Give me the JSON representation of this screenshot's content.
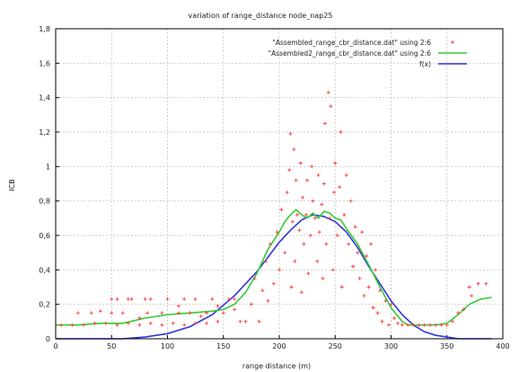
{
  "chart_data": {
    "type": "scatter",
    "title": "variation of range_distance node_nap25",
    "xlabel": "range distance (m)",
    "ylabel": "ICB",
    "xlim": [
      0,
      400
    ],
    "ylim": [
      0,
      1.8
    ],
    "x_ticks": [
      0,
      50,
      100,
      150,
      200,
      250,
      300,
      350,
      400
    ],
    "x_tick_labels": [
      "0",
      "50",
      "100",
      "150",
      "200",
      "250",
      "300",
      "350",
      "400"
    ],
    "y_ticks": [
      0,
      0.2,
      0.4,
      0.6,
      0.8,
      1,
      1.2,
      1.4,
      1.6,
      1.8
    ],
    "y_tick_labels": [
      "0",
      "0,2",
      "0,4",
      "0,6",
      "0,8",
      "1",
      "1,2",
      "1,4",
      "1,6",
      "1,8"
    ],
    "grid": true,
    "legend_position": "top-right",
    "colors": {
      "points": "#ff3b3b",
      "average": "#33cc33",
      "fit": "#3333dd",
      "grid": "#bbbbbb",
      "frame": "#000000"
    },
    "series": [
      {
        "name": "\"Assembled_range_cbr_distance.dat\" using 2:6",
        "kind": "points",
        "points": [
          [
            5,
            0.08
          ],
          [
            15,
            0.08
          ],
          [
            25,
            0.08
          ],
          [
            35,
            0.09
          ],
          [
            45,
            0.09
          ],
          [
            55,
            0.08
          ],
          [
            65,
            0.09
          ],
          [
            75,
            0.08
          ],
          [
            85,
            0.09
          ],
          [
            95,
            0.08
          ],
          [
            105,
            0.09
          ],
          [
            115,
            0.08
          ],
          [
            125,
            0.09
          ],
          [
            135,
            0.09
          ],
          [
            145,
            0.1
          ],
          [
            20,
            0.15
          ],
          [
            32,
            0.15
          ],
          [
            50,
            0.15
          ],
          [
            60,
            0.15
          ],
          [
            82,
            0.15
          ],
          [
            95,
            0.15
          ],
          [
            110,
            0.15
          ],
          [
            120,
            0.15
          ],
          [
            135,
            0.15
          ],
          [
            150,
            0.15
          ],
          [
            160,
            0.17
          ],
          [
            50,
            0.23
          ],
          [
            55,
            0.23
          ],
          [
            65,
            0.23
          ],
          [
            68,
            0.23
          ],
          [
            80,
            0.23
          ],
          [
            85,
            0.23
          ],
          [
            100,
            0.23
          ],
          [
            115,
            0.23
          ],
          [
            125,
            0.23
          ],
          [
            140,
            0.23
          ],
          [
            155,
            0.23
          ],
          [
            160,
            0.23
          ],
          [
            40,
            0.16
          ],
          [
            75,
            0.12
          ],
          [
            110,
            0.19
          ],
          [
            130,
            0.13
          ],
          [
            145,
            0.19
          ],
          [
            165,
            0.1
          ],
          [
            170,
            0.1
          ],
          [
            175,
            0.2
          ],
          [
            178,
            0.35
          ],
          [
            182,
            0.1
          ],
          [
            185,
            0.28
          ],
          [
            188,
            0.45
          ],
          [
            190,
            0.22
          ],
          [
            192,
            0.55
          ],
          [
            195,
            0.32
          ],
          [
            198,
            0.62
          ],
          [
            200,
            0.4
          ],
          [
            202,
            0.75
          ],
          [
            205,
            0.5
          ],
          [
            207,
            0.85
          ],
          [
            209,
            0.98
          ],
          [
            210,
            1.19
          ],
          [
            211,
            0.3
          ],
          [
            212,
            0.68
          ],
          [
            213,
            1.1
          ],
          [
            214,
            0.45
          ],
          [
            215,
            0.92
          ],
          [
            216,
            0.72
          ],
          [
            218,
            0.63
          ],
          [
            219,
            1.02
          ],
          [
            220,
            0.27
          ],
          [
            221,
            0.82
          ],
          [
            222,
            0.55
          ],
          [
            224,
            0.72
          ],
          [
            225,
            0.92
          ],
          [
            226,
            0.38
          ],
          [
            228,
            0.6
          ],
          [
            229,
            1.0
          ],
          [
            230,
            0.8
          ],
          [
            232,
            0.7
          ],
          [
            234,
            0.45
          ],
          [
            235,
            0.95
          ],
          [
            236,
            0.62
          ],
          [
            238,
            0.78
          ],
          [
            239,
            0.35
          ],
          [
            240,
            0.9
          ],
          [
            241,
            1.25
          ],
          [
            242,
            0.55
          ],
          [
            244,
            1.43
          ],
          [
            245,
            0.7
          ],
          [
            246,
            1.35
          ],
          [
            248,
            0.4
          ],
          [
            249,
            0.85
          ],
          [
            250,
            1.02
          ],
          [
            252,
            0.6
          ],
          [
            254,
            0.88
          ],
          [
            255,
            1.2
          ],
          [
            256,
            0.3
          ],
          [
            258,
            0.72
          ],
          [
            260,
            0.95
          ],
          [
            262,
            0.55
          ],
          [
            264,
            0.8
          ],
          [
            266,
            0.42
          ],
          [
            268,
            0.65
          ],
          [
            270,
            0.5
          ],
          [
            272,
            0.35
          ],
          [
            274,
            0.62
          ],
          [
            276,
            0.25
          ],
          [
            278,
            0.48
          ],
          [
            280,
            0.3
          ],
          [
            282,
            0.55
          ],
          [
            284,
            0.18
          ],
          [
            286,
            0.4
          ],
          [
            288,
            0.15
          ],
          [
            290,
            0.28
          ],
          [
            292,
            0.1
          ],
          [
            295,
            0.22
          ],
          [
            298,
            0.08
          ],
          [
            300,
            0.2
          ],
          [
            303,
            0.12
          ],
          [
            306,
            0.09
          ],
          [
            310,
            0.08
          ],
          [
            315,
            0.08
          ],
          [
            320,
            0.08
          ],
          [
            325,
            0.08
          ],
          [
            330,
            0.08
          ],
          [
            335,
            0.08
          ],
          [
            340,
            0.08
          ],
          [
            345,
            0.08
          ],
          [
            350,
            0.08
          ],
          [
            355,
            0.1
          ],
          [
            360,
            0.15
          ],
          [
            365,
            0.17
          ],
          [
            370,
            0.3
          ],
          [
            372,
            0.25
          ],
          [
            378,
            0.32
          ],
          [
            385,
            0.32
          ]
        ]
      },
      {
        "name": "\"Assembled2_range_cbr_distance.dat\" using 2:6",
        "kind": "line",
        "x": [
          0,
          20,
          40,
          60,
          80,
          100,
          120,
          140,
          150,
          160,
          170,
          180,
          190,
          200,
          205,
          210,
          215,
          220,
          225,
          230,
          235,
          240,
          245,
          250,
          255,
          260,
          270,
          280,
          290,
          300,
          310,
          315,
          320,
          330,
          340,
          350,
          360,
          370,
          380,
          390
        ],
        "y": [
          0.08,
          0.08,
          0.09,
          0.09,
          0.12,
          0.14,
          0.15,
          0.16,
          0.17,
          0.2,
          0.27,
          0.38,
          0.52,
          0.62,
          0.68,
          0.72,
          0.75,
          0.72,
          0.7,
          0.73,
          0.7,
          0.74,
          0.73,
          0.7,
          0.69,
          0.64,
          0.55,
          0.43,
          0.3,
          0.18,
          0.1,
          0.08,
          0.08,
          0.08,
          0.08,
          0.09,
          0.14,
          0.2,
          0.23,
          0.24
        ]
      },
      {
        "name": "f(x)",
        "kind": "curve",
        "x": [
          0,
          20,
          40,
          60,
          80,
          100,
          120,
          140,
          160,
          180,
          200,
          210,
          220,
          230,
          240,
          250,
          260,
          270,
          280,
          290,
          300,
          310,
          320,
          330,
          340,
          350,
          360,
          380,
          390
        ],
        "y": [
          0.0,
          0.0,
          0.0,
          0.0,
          0.01,
          0.03,
          0.07,
          0.14,
          0.25,
          0.39,
          0.56,
          0.63,
          0.69,
          0.72,
          0.71,
          0.68,
          0.62,
          0.53,
          0.42,
          0.32,
          0.22,
          0.14,
          0.08,
          0.04,
          0.02,
          0.01,
          0.0,
          0.0,
          0.0
        ]
      }
    ]
  }
}
